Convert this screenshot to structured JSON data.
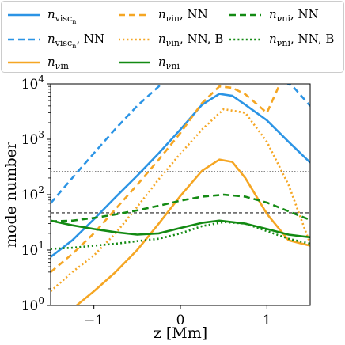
{
  "chart_data": {
    "type": "line",
    "xlabel": "z [Mm]",
    "ylabel": "mode number",
    "xlim": [
      -1.5,
      1.5
    ],
    "ylim": [
      1,
      10000
    ],
    "yscale": "log",
    "grid": false,
    "legend_placement": "top, above axes",
    "x_ticks": [
      {
        "value": -1,
        "label": "−1"
      },
      {
        "value": 0,
        "label": "0"
      },
      {
        "value": 1,
        "label": "1"
      }
    ],
    "y_ticks": [
      {
        "value": 1,
        "base": "10",
        "exp": "0"
      },
      {
        "value": 10,
        "base": "10",
        "exp": "1"
      },
      {
        "value": 100,
        "base": "10",
        "exp": "2"
      },
      {
        "value": 1000,
        "base": "10",
        "exp": "3"
      },
      {
        "value": 10000,
        "base": "10",
        "exp": "4"
      }
    ],
    "hlines": [
      {
        "y": 260,
        "style": "dotted",
        "color": "#444444"
      },
      {
        "y": 47,
        "style": "dashed",
        "color": "#222222"
      }
    ],
    "series": [
      {
        "key": "visc",
        "label_main": "n",
        "label_sub": "visc",
        "label_subsub": "n",
        "label_suffix": "",
        "color": "#2b94e5",
        "dash": "solid",
        "x": [
          -1.5,
          -1.25,
          -1.0,
          -0.75,
          -0.5,
          -0.25,
          0.0,
          0.25,
          0.45,
          0.6,
          0.75,
          1.0,
          1.25,
          1.5
        ],
        "y": [
          7.5,
          15,
          36,
          90,
          220,
          560,
          1500,
          4200,
          6600,
          6100,
          4200,
          2200,
          900,
          380
        ]
      },
      {
        "key": "visc_nn",
        "label_main": "n",
        "label_sub": "visc",
        "label_subsub": "n",
        "label_suffix": ", NN",
        "color": "#2b94e5",
        "dash": "dashed",
        "x": [
          -1.5,
          -1.25,
          -1.0,
          -0.75,
          -0.5,
          -0.25,
          -0.2,
          1.2,
          1.3,
          1.4,
          1.5
        ],
        "y": [
          70,
          200,
          560,
          1550,
          4000,
          9000,
          11000,
          11000,
          9000,
          6000,
          4000
        ]
      },
      {
        "key": "nuin",
        "label_main": "n",
        "label_sub": "νin",
        "label_subsub": "",
        "label_suffix": "",
        "color": "#f5a623",
        "dash": "solid",
        "x": [
          -1.2,
          -1.0,
          -0.75,
          -0.5,
          -0.25,
          0.0,
          0.25,
          0.45,
          0.6,
          0.75,
          1.0,
          1.25,
          1.5
        ],
        "y": [
          1.0,
          1.8,
          4,
          10,
          30,
          95,
          270,
          430,
          390,
          200,
          45,
          15,
          12
        ]
      },
      {
        "key": "nuin_nn",
        "label_main": "n",
        "label_sub": "νin",
        "label_subsub": "",
        "label_suffix": ", NN",
        "color": "#f5a623",
        "dash": "dashed",
        "x": [
          -1.5,
          -1.25,
          -1.0,
          -0.75,
          -0.5,
          -0.25,
          0.0,
          0.25,
          0.45,
          0.6,
          0.75,
          1.0,
          1.15
        ],
        "y": [
          4,
          8.5,
          20,
          55,
          150,
          430,
          1300,
          4500,
          9000,
          8500,
          6500,
          3000,
          10000
        ]
      },
      {
        "key": "nuin_nnb",
        "label_main": "n",
        "label_sub": "νin",
        "label_subsub": "",
        "label_suffix": ", NN, B",
        "color": "#f5a623",
        "dash": "dotted",
        "x": [
          -1.5,
          -1.25,
          -1.0,
          -0.75,
          -0.5,
          -0.25,
          0.0,
          0.25,
          0.5,
          0.75,
          1.0,
          1.25,
          1.5
        ],
        "y": [
          1.8,
          4,
          8,
          20,
          60,
          190,
          550,
          1500,
          3500,
          3000,
          900,
          150,
          13
        ]
      },
      {
        "key": "nuni",
        "label_main": "n",
        "label_sub": "νni",
        "label_subsub": "",
        "label_suffix": "",
        "color": "#138a13",
        "dash": "solid",
        "x": [
          -1.5,
          -1.25,
          -1.0,
          -0.75,
          -0.5,
          -0.25,
          0.0,
          0.25,
          0.45,
          0.75,
          1.0,
          1.25,
          1.5
        ],
        "y": [
          34,
          28,
          24,
          21,
          19,
          20,
          25,
          31,
          34,
          30,
          24,
          19,
          17
        ]
      },
      {
        "key": "nuni_nn",
        "label_main": "n",
        "label_sub": "νni",
        "label_subsub": "",
        "label_suffix": ", NN",
        "color": "#138a13",
        "dash": "dashed",
        "x": [
          -1.5,
          -1.25,
          -1.0,
          -0.75,
          -0.5,
          -0.25,
          0.0,
          0.25,
          0.5,
          0.75,
          1.0,
          1.25,
          1.5
        ],
        "y": [
          33,
          34,
          38,
          44,
          52,
          63,
          78,
          92,
          100,
          92,
          72,
          50,
          35
        ]
      },
      {
        "key": "nuni_nnb",
        "label_main": "n",
        "label_sub": "νni",
        "label_subsub": "",
        "label_suffix": ", NN, B",
        "color": "#138a13",
        "dash": "dotted",
        "x": [
          -1.5,
          -1.25,
          -1.0,
          -0.75,
          -0.5,
          -0.25,
          0.0,
          0.25,
          0.5,
          0.75,
          1.0,
          1.25,
          1.5
        ],
        "y": [
          10.5,
          11,
          12,
          13,
          14.5,
          16,
          20,
          27,
          32,
          30,
          22,
          16,
          13
        ]
      }
    ]
  }
}
